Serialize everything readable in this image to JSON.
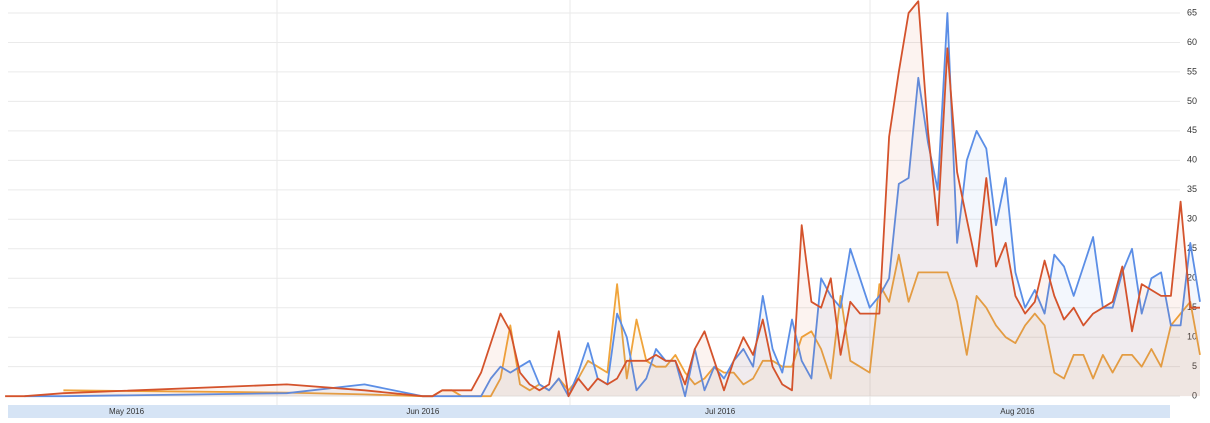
{
  "chart_data": {
    "type": "line",
    "x": [
      125,
      127,
      131,
      154,
      162,
      168,
      169,
      170,
      171,
      172,
      173,
      174,
      175,
      176,
      177,
      178,
      179,
      180,
      181,
      182,
      183,
      184,
      185,
      186,
      187,
      188,
      189,
      190,
      191,
      192,
      193,
      194,
      195,
      196,
      197,
      198,
      199,
      200,
      201,
      202,
      203,
      204,
      205,
      206,
      207,
      208,
      209,
      210,
      211,
      212,
      213,
      214,
      215,
      216,
      217,
      218,
      219,
      220,
      221,
      222,
      223,
      224,
      225,
      226,
      227,
      228,
      229,
      230,
      231,
      232,
      233,
      234,
      235,
      236,
      237,
      238,
      239,
      240,
      241,
      242,
      243,
      244,
      245,
      246,
      247,
      248
    ],
    "series": [
      {
        "color": "#f0a43a",
        "values": [
          null,
          null,
          1,
          0.6,
          0.3,
          0,
          0,
          1,
          1,
          0,
          0,
          0,
          0,
          3,
          12,
          2,
          1,
          2,
          1,
          3,
          1,
          3,
          6,
          5,
          4,
          19,
          3,
          13,
          6,
          5,
          5,
          7,
          4,
          2,
          3,
          5,
          4,
          4,
          2,
          3,
          6,
          6,
          5,
          5,
          10,
          11,
          8,
          3,
          17,
          6,
          5,
          4,
          19,
          16,
          24,
          16,
          21,
          21,
          21,
          21,
          16,
          7,
          17,
          15,
          12,
          10,
          9,
          12,
          14,
          12,
          4,
          3,
          7,
          7,
          3,
          7,
          4,
          7,
          7,
          5,
          8,
          5,
          12,
          14,
          16,
          7
        ]
      },
      {
        "color": "#5b8ee6",
        "values": [
          null,
          0,
          0,
          0.5,
          2,
          0,
          0,
          0,
          0,
          0,
          0,
          0,
          3,
          5,
          4,
          5,
          6,
          2,
          1,
          3,
          0,
          4,
          9,
          3,
          2,
          14,
          10,
          1,
          3,
          8,
          6,
          6,
          0,
          8,
          1,
          5,
          3,
          6,
          8,
          5,
          17,
          8,
          4,
          13,
          6,
          3,
          20,
          17,
          15,
          25,
          20,
          15,
          17,
          20,
          36,
          37,
          54,
          43,
          35,
          65,
          26,
          40,
          45,
          42,
          29,
          37,
          21,
          15,
          18,
          14,
          24,
          22,
          17,
          22,
          27,
          15,
          15,
          21,
          25,
          14,
          20,
          21,
          12,
          12,
          26,
          16
        ]
      },
      {
        "color": "#d4532c",
        "values": [
          0,
          0,
          0.5,
          2,
          1,
          0,
          0,
          1,
          1,
          1,
          1,
          4,
          9,
          14,
          11,
          4,
          2,
          1,
          2,
          11,
          0,
          3,
          1,
          3,
          2,
          3,
          6,
          6,
          6,
          7,
          6,
          6,
          2,
          8,
          11,
          6,
          1,
          6,
          10,
          7,
          13,
          5,
          2,
          1,
          29,
          16,
          15,
          20,
          7,
          16,
          14,
          14,
          14,
          44,
          55,
          65,
          67,
          45,
          29,
          59,
          38,
          30,
          22,
          37,
          22,
          26,
          17,
          14,
          16,
          23,
          17,
          13,
          15,
          12,
          14,
          15,
          16,
          22,
          11,
          19,
          18,
          17,
          17,
          33,
          15,
          15
        ]
      }
    ],
    "xlim": [
      125.3,
      248
    ],
    "xticks": [
      {
        "value": 137.5,
        "label": "May 2016"
      },
      {
        "value": 168,
        "label": "Jun 2016"
      },
      {
        "value": 198.6,
        "label": "Jul 2016"
      },
      {
        "value": 229.2,
        "label": "Aug 2016"
      }
    ],
    "ylim": [
      -1.5,
      67.2
    ],
    "yticks": [
      0,
      5,
      10,
      15,
      20,
      25,
      30,
      35,
      40,
      45,
      50,
      55,
      60,
      65
    ],
    "grid": true
  }
}
